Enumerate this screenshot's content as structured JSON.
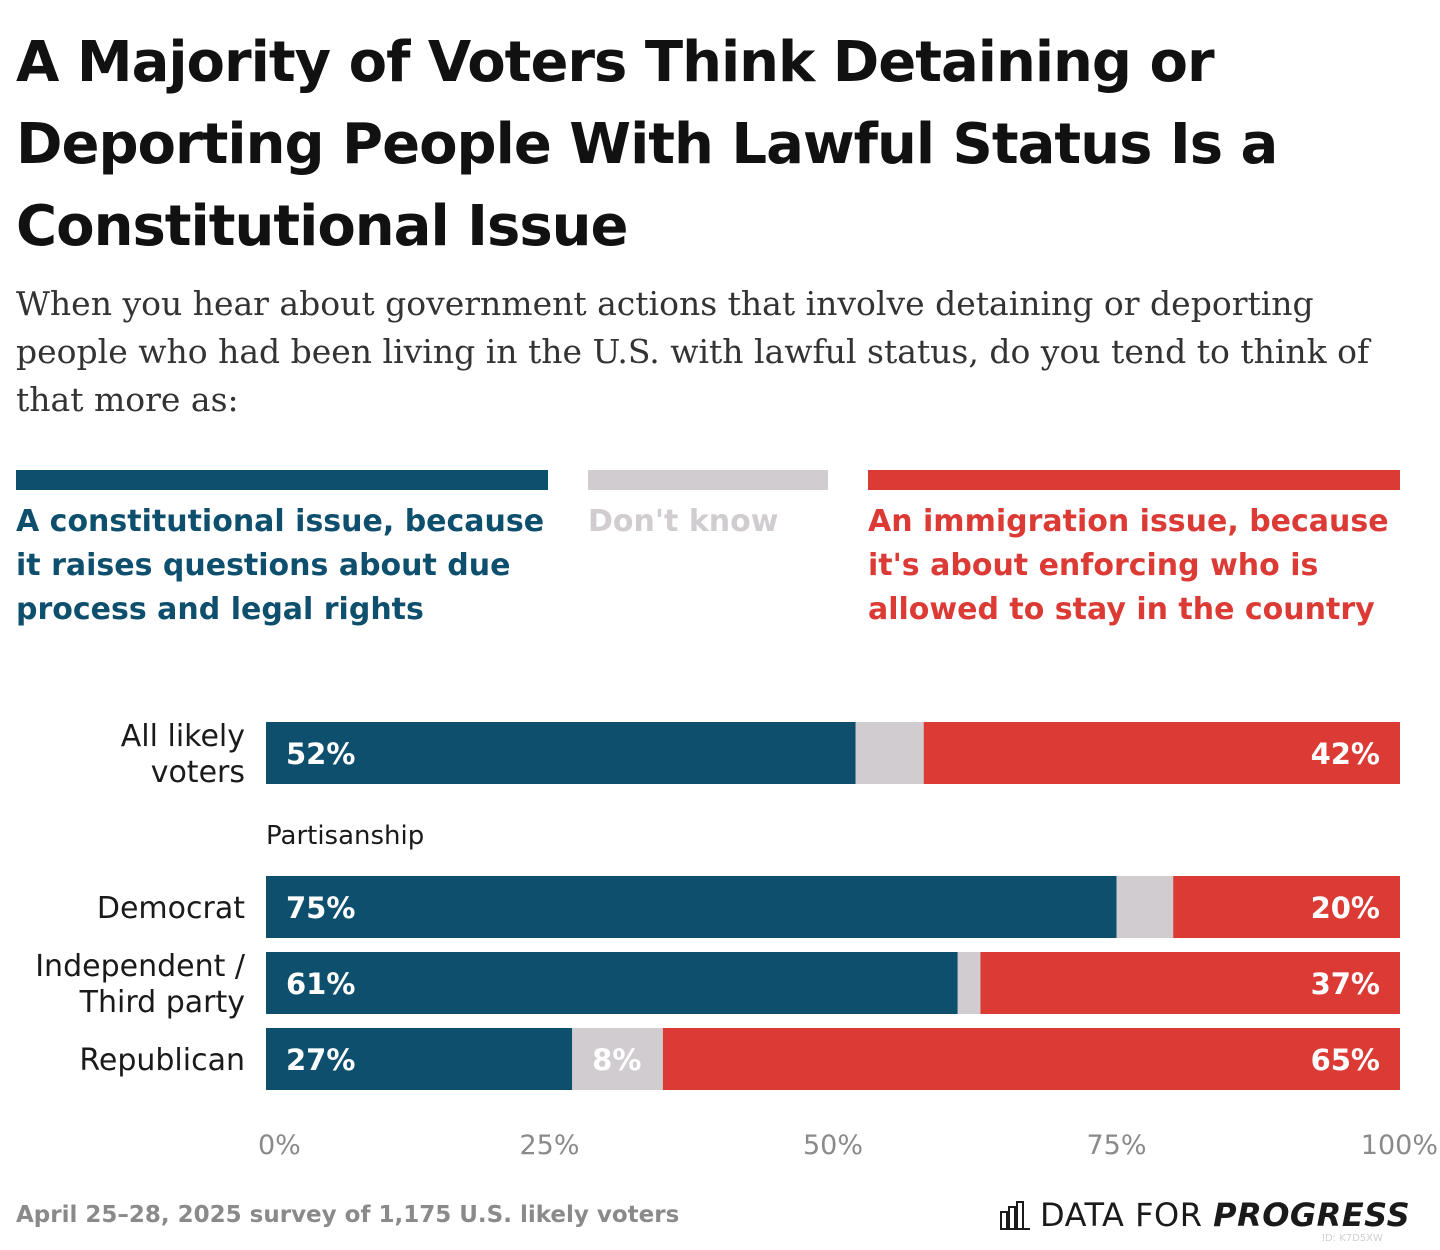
{
  "title": "A Majority of Voters Think Detaining or Deporting People With Lawful Status Is a Constitutional Issue",
  "subtitle": "When you hear about government actions that involve detaining or deporting people who had been living in the U.S. with lawful status, do you tend to think of that more as:",
  "colors": {
    "constitutional": "#0e4f6e",
    "dont_know": "#d0ccd0",
    "immigration": "#dc3a35",
    "axis_text": "#8a8a8a"
  },
  "chart_data": {
    "type": "bar",
    "orientation": "horizontal",
    "stacked": true,
    "xlim": [
      0,
      100
    ],
    "x_ticks": [
      "0%",
      "25%",
      "50%",
      "75%",
      "100%"
    ],
    "series": [
      {
        "name": "A constitutional issue, because it raises questions about due process and legal rights",
        "key": "constitutional"
      },
      {
        "name": "Don't know",
        "key": "dont_know"
      },
      {
        "name": "An immigration issue, because it's about enforcing who is allowed to stay in the country",
        "key": "immigration"
      }
    ],
    "rows": [
      {
        "label": "All likely voters",
        "label_lines": [
          "All likely",
          "voters"
        ],
        "values": [
          52,
          6,
          42
        ],
        "labels": [
          "52%",
          "",
          "42%"
        ]
      },
      {
        "label": "Democrat",
        "label_lines": [
          "Democrat"
        ],
        "values": [
          75,
          5,
          20
        ],
        "labels": [
          "75%",
          "",
          "20%"
        ]
      },
      {
        "label": "Independent / Third party",
        "label_lines": [
          "Independent /",
          "Third party"
        ],
        "values": [
          61,
          2,
          37
        ],
        "labels": [
          "61%",
          "",
          "37%"
        ]
      },
      {
        "label": "Republican",
        "label_lines": [
          "Republican"
        ],
        "values": [
          27,
          8,
          65
        ],
        "labels": [
          "27%",
          "8%",
          "65%"
        ]
      }
    ],
    "group_label": "Partisanship",
    "grid": false,
    "legend_position": "top"
  },
  "footer": {
    "note": "April 25–28, 2025 survey of 1,175 U.S. likely voters",
    "logo_prefix": "DATA FOR",
    "logo_bold": "PROGRESS",
    "logo_id": "ID: K7D5XW"
  }
}
